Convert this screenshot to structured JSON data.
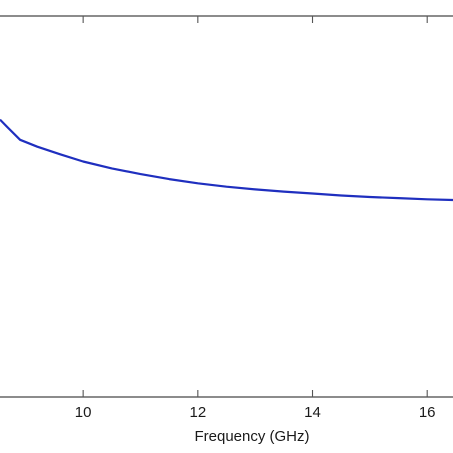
{
  "chart_data": {
    "type": "line",
    "xlabel": "Frequency (GHz)",
    "ylabel": "",
    "title": "",
    "xlim": [
      8.55,
      16.45
    ],
    "ylim": [
      0,
      1
    ],
    "xticks": [
      10,
      12,
      14,
      16
    ],
    "xtick_labels": [
      "10",
      "12",
      "14",
      "16"
    ],
    "grid": false,
    "series": [
      {
        "color": "#1f2fbf",
        "x": [
          8.55,
          8.7,
          8.9,
          9.2,
          9.6,
          10.0,
          10.5,
          11.0,
          11.5,
          12.0,
          12.5,
          13.0,
          13.5,
          14.0,
          14.5,
          15.0,
          15.5,
          16.0,
          16.45
        ],
        "y": [
          0.728,
          0.705,
          0.675,
          0.657,
          0.637,
          0.618,
          0.6,
          0.585,
          0.572,
          0.561,
          0.552,
          0.545,
          0.539,
          0.534,
          0.529,
          0.525,
          0.522,
          0.519,
          0.517
        ]
      }
    ]
  }
}
